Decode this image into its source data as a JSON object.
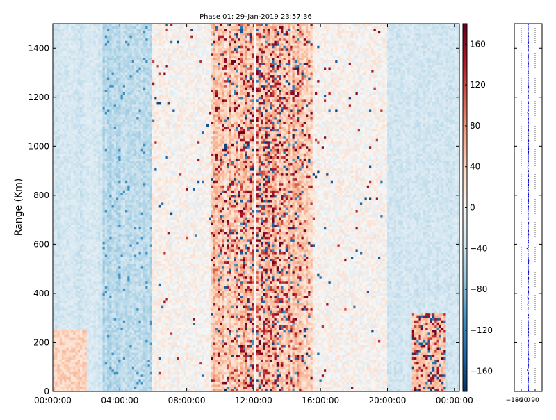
{
  "chart_data": [
    {
      "type": "heatmap",
      "title": "Phase 01: 29-Jan-2019 23:57:36",
      "xlabel": "",
      "ylabel": "Range (Km)",
      "x_ticks": [
        "00:00:00",
        "04:00:00",
        "08:00:00",
        "12:00:00",
        "16:00:00",
        "20:00:00",
        "00:00:00"
      ],
      "x_tick_hours": [
        0,
        4,
        8,
        12,
        16,
        20,
        24
      ],
      "xlim_hours": [
        0,
        24.3
      ],
      "y_ticks": [
        0,
        200,
        400,
        600,
        800,
        1000,
        1200,
        1400
      ],
      "ylim": [
        0,
        1500
      ],
      "colorbar": {
        "colormap": "RdBu_r",
        "range": [
          -180,
          180
        ],
        "ticks": [
          -160,
          -120,
          -80,
          -40,
          0,
          40,
          80,
          120,
          160
        ],
        "tick_labels": [
          "−160",
          "−120",
          "−80",
          "−40",
          "0",
          "40",
          "80",
          "120",
          "160"
        ]
      },
      "features": {
        "noisy_band_hours": [
          9.5,
          15.5
        ],
        "blue_band_hours": [
          3.0,
          6.0
        ],
        "data_gap_hour": 12.1,
        "noisy_patch": {
          "hours": [
            21.5,
            23.5
          ],
          "range_km": [
            0,
            320
          ]
        }
      }
    },
    {
      "type": "line",
      "xlim": [
        -180,
        180
      ],
      "x_ticks": [
        -180,
        -90,
        0,
        90
      ],
      "x_tick_labels": [
        "−180",
        "−90",
        "0",
        "90"
      ],
      "ylim": [
        0,
        1500
      ],
      "grid": "vertical dotted",
      "series": [
        {
          "color": "#0000cc",
          "mean": 0,
          "spread": 6
        }
      ]
    }
  ],
  "colors": {
    "line": "#0000cc",
    "axis": "#000000"
  }
}
